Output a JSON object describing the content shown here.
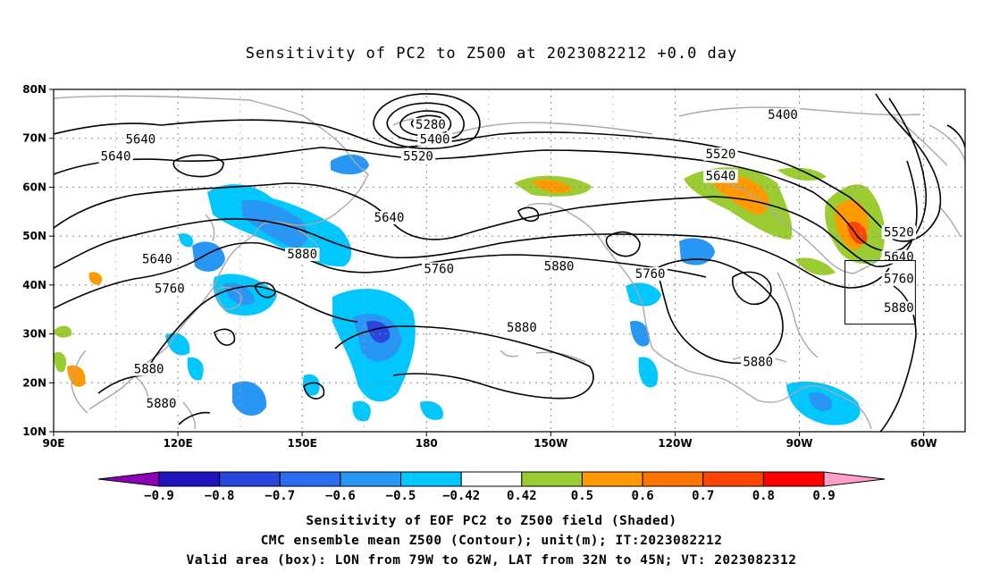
{
  "title": "Sensitivity of PC2 to Z500 at 2023082212 +0.0 day",
  "map": {
    "lat_labels": [
      "80N",
      "70N",
      "60N",
      "50N",
      "40N",
      "30N",
      "20N",
      "10N"
    ],
    "lon_labels": [
      "90E",
      "120E",
      "150E",
      "180",
      "150W",
      "120W",
      "90W",
      "60W"
    ],
    "extent": {
      "lon_min": 90,
      "lon_max": 310,
      "lat_min": 10,
      "lat_max": 80
    },
    "contour_labels": [
      {
        "text": "5280",
        "lon": 181,
        "lat": 72.5
      },
      {
        "text": "5400",
        "lon": 182,
        "lat": 69.5
      },
      {
        "text": "5520",
        "lon": 178,
        "lat": 66
      },
      {
        "text": "5400",
        "lon": 266,
        "lat": 74.5
      },
      {
        "text": "5520",
        "lon": 251,
        "lat": 66.5
      },
      {
        "text": "5640",
        "lon": 251,
        "lat": 62
      },
      {
        "text": "5640",
        "lon": 111,
        "lat": 69.5
      },
      {
        "text": "5640",
        "lon": 105,
        "lat": 66
      },
      {
        "text": "5640",
        "lon": 171,
        "lat": 53.5
      },
      {
        "text": "5640",
        "lon": 115,
        "lat": 45
      },
      {
        "text": "5880",
        "lon": 150,
        "lat": 46
      },
      {
        "text": "5760",
        "lon": 183,
        "lat": 43
      },
      {
        "text": "5880",
        "lon": 212,
        "lat": 43.5
      },
      {
        "text": "5760",
        "lon": 118,
        "lat": 39
      },
      {
        "text": "5760",
        "lon": 234,
        "lat": 42
      },
      {
        "text": "5880",
        "lon": 203,
        "lat": 31
      },
      {
        "text": "5880",
        "lon": 260,
        "lat": 24
      },
      {
        "text": "5880",
        "lon": 113,
        "lat": 22.5
      },
      {
        "text": "5880",
        "lon": 116,
        "lat": 15.5
      },
      {
        "text": "5520",
        "lon": 294,
        "lat": 50.5
      },
      {
        "text": "5640",
        "lon": 294,
        "lat": 45.5
      },
      {
        "text": "5760",
        "lon": 294,
        "lat": 41
      },
      {
        "text": "5880",
        "lon": 294,
        "lat": 35
      }
    ],
    "valid_box": {
      "lon_w": 281,
      "lon_e": 298,
      "lat_s": 32,
      "lat_n": 45
    }
  },
  "colorbar": {
    "tick_labels": [
      "-0.9",
      "-0.8",
      "-0.7",
      "-0.6",
      "-0.5",
      "-0.42",
      "0.42",
      "0.5",
      "0.6",
      "0.7",
      "0.8",
      "0.9"
    ],
    "colors": [
      "#8b00b4",
      "#1e14be",
      "#2846dc",
      "#2a6ef0",
      "#2896f5",
      "#00c8ff",
      "#ffffff",
      "#9bcd32",
      "#ff9b00",
      "#ff7300",
      "#ff4600",
      "#ff0000",
      "#ffa0c8"
    ]
  },
  "captions": {
    "line1": "Sensitivity of EOF PC2 to Z500 field (Shaded)",
    "line2": "CMC ensemble mean Z500 (Contour); unit(m); IT:2023082212",
    "line3": "Valid area (box): LON from 79W to 62W, LAT from 32N to 45N; VT: 2023082312"
  }
}
